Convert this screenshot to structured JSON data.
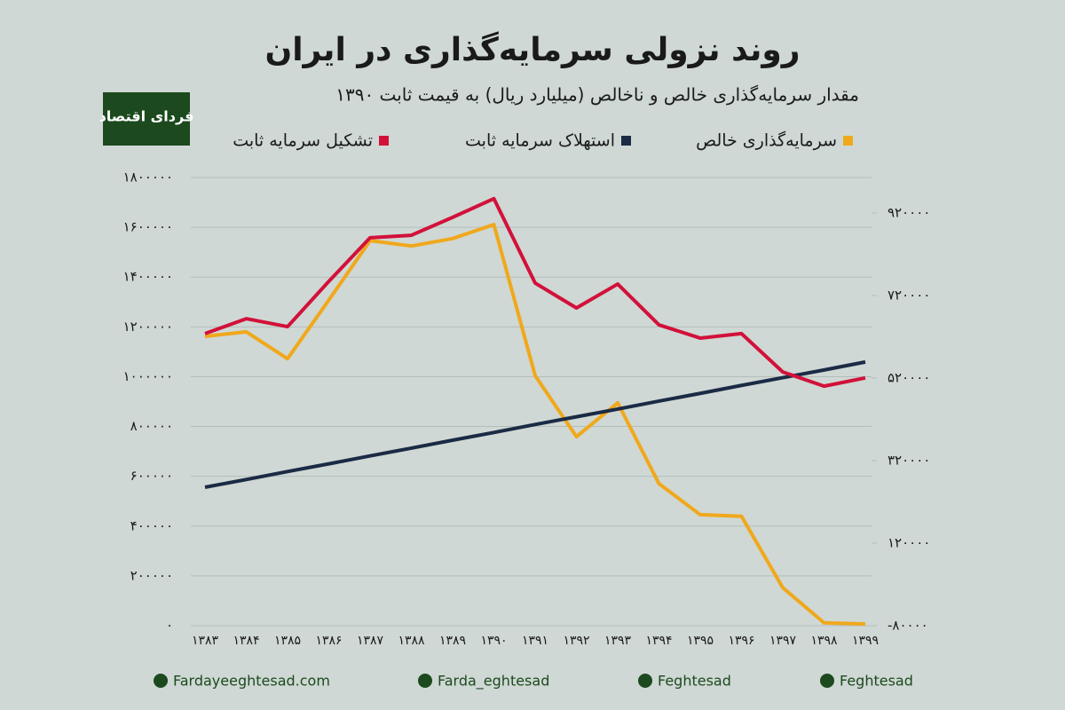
{
  "chart_data": {
    "type": "line",
    "title": "روند نزولی سرمایه‌گذاری در ایران",
    "subtitle": "مقدار سرمایه‌گذاری خالص و ناخالص (میلیارد ریال) به قیمت ثابت ۱۳۹۰",
    "logo": "فردای اقتصاد",
    "categories": [
      "۱۳۸۳",
      "۱۳۸۴",
      "۱۳۸۵",
      "۱۳۸۶",
      "۱۳۸۷",
      "۱۳۸۸",
      "۱۳۸۹",
      "۱۳۹۰",
      "۱۳۹۱",
      "۱۳۹۲",
      "۱۳۹۳",
      "۱۳۹۴",
      "۱۳۹۵",
      "۱۳۹۶",
      "۱۳۹۷",
      "۱۳۹۸",
      "۱۳۹۹"
    ],
    "series": [
      {
        "name": "سرمایه‌گذاری خالص",
        "color": "#f0a81c",
        "axis": "y2",
        "values": [
          621000,
          632000,
          567000,
          709000,
          853000,
          840000,
          858000,
          892000,
          526000,
          378000,
          460000,
          264000,
          189000,
          185000,
          12000,
          -73000,
          -76000
        ]
      },
      {
        "name": "استهلاک سرمایه ثابت",
        "color": "#1b2a45",
        "values": [
          556000,
          587000,
          619000,
          650000,
          682000,
          713000,
          745000,
          776000,
          808000,
          839000,
          870000,
          902000,
          933000,
          965000,
          996000,
          1027000,
          1059000
        ]
      },
      {
        "name": "تشکیل سرمایه ثابت",
        "color": "#d2113a",
        "values": [
          1173000,
          1233000,
          1201000,
          1383000,
          1558000,
          1568000,
          1640000,
          1715000,
          1376000,
          1276000,
          1372000,
          1208000,
          1155000,
          1173000,
          1019000,
          962000,
          995000
        ]
      }
    ],
    "ylim": [
      0,
      1800000
    ],
    "yticks": [
      {
        "value": 0,
        "label": "۰"
      },
      {
        "value": 200000,
        "label": "۲۰۰۰۰۰"
      },
      {
        "value": 400000,
        "label": "۴۰۰۰۰۰"
      },
      {
        "value": 600000,
        "label": "۶۰۰۰۰۰"
      },
      {
        "value": 800000,
        "label": "۸۰۰۰۰۰"
      },
      {
        "value": 1000000,
        "label": "۱۰۰۰۰۰۰"
      },
      {
        "value": 1200000,
        "label": "۱۲۰۰۰۰۰"
      },
      {
        "value": 1400000,
        "label": "۱۴۰۰۰۰۰"
      },
      {
        "value": 1600000,
        "label": "۱۶۰۰۰۰۰"
      },
      {
        "value": 1800000,
        "label": "۱۸۰۰۰۰۰"
      }
    ],
    "y2lim": [
      -80000,
      1006000
    ],
    "y2ticks": [
      {
        "value": -80000,
        "label": "-۸۰۰۰۰"
      },
      {
        "value": 120000,
        "label": "۱۲۰۰۰۰"
      },
      {
        "value": 320000,
        "label": "۳۲۰۰۰۰"
      },
      {
        "value": 520000,
        "label": "۵۲۰۰۰۰"
      },
      {
        "value": 720000,
        "label": "۷۲۰۰۰۰"
      },
      {
        "value": 920000,
        "label": "۹۲۰۰۰۰"
      }
    ],
    "grid": true,
    "footer": [
      "Fardayeeghtesad.com",
      "Farda_eghtesad",
      "Feghtesad",
      "Feghtesad"
    ]
  }
}
